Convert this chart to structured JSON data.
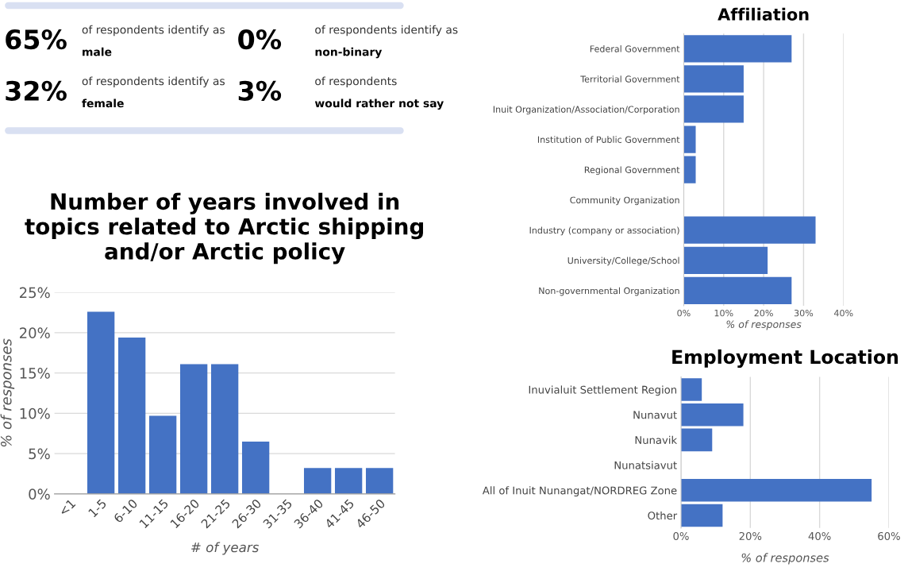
{
  "chart_data": [
    {
      "type": "other",
      "annotations": [
        "65%",
        "of respondents identify as",
        "male",
        "0%",
        "of respondents identify as",
        "non-binary",
        "32%",
        "of respondents identify as",
        "female",
        "3%",
        "of respondents",
        "would rather not say"
      ]
    },
    {
      "type": "bar",
      "title": "Number of years involved in\ntopics related to Arctic shipping\nand/or Arctic policy",
      "xlabel": "# of years",
      "ylabel": "% of responses",
      "categories": [
        "<1",
        "1-5",
        "6-10",
        "11-15",
        "16-20",
        "21-25",
        "26-30",
        "31-35",
        "36-40",
        "41-45",
        "46-50"
      ],
      "values": [
        0,
        22.6,
        19.4,
        9.7,
        16.1,
        16.1,
        6.5,
        0,
        3.2,
        3.2,
        3.2
      ],
      "color": "#4472c4",
      "ylim": [
        0,
        25
      ],
      "yticks": [
        {
          "value": 0,
          "label": "0%"
        },
        {
          "value": 5,
          "label": "5%"
        },
        {
          "value": 10,
          "label": "10%"
        },
        {
          "value": 15,
          "label": "15%"
        },
        {
          "value": 20,
          "label": "20%"
        },
        {
          "value": 25,
          "label": "25%"
        }
      ],
      "grid": "y"
    },
    {
      "type": "bar",
      "orientation": "horizontal",
      "title": "Affiliation",
      "xlabel": "% of responses",
      "categories": [
        "Federal Government",
        "Territorial Government",
        "Inuit Organization/Association/Corporation",
        "Institution of Public Government",
        "Regional Government",
        "Community Organization",
        "Industry (company or association)",
        "University/College/School",
        "Non-governmental Organization"
      ],
      "values": [
        27,
        15,
        15,
        3,
        3,
        0,
        33,
        21,
        27
      ],
      "color": "#4472c4",
      "xlim": [
        0,
        40
      ],
      "xticks": [
        {
          "value": 0,
          "label": "0%"
        },
        {
          "value": 10,
          "label": "10%"
        },
        {
          "value": 20,
          "label": "20%"
        },
        {
          "value": 30,
          "label": "30%"
        },
        {
          "value": 40,
          "label": "40%"
        }
      ],
      "grid": "x"
    },
    {
      "type": "bar",
      "orientation": "horizontal",
      "title": "Employment Location",
      "xlabel": "% of responses",
      "categories": [
        "Inuvialuit Settlement Region",
        "Nunavut",
        "Nunavik",
        "Nunatsiavut",
        "All of Inuit Nunangat/NORDREG Zone",
        "Other"
      ],
      "values": [
        6,
        18,
        9,
        0,
        55,
        12
      ],
      "color": "#4472c4",
      "xlim": [
        0,
        60
      ],
      "xticks": [
        {
          "value": 0,
          "label": "0%"
        },
        {
          "value": 20,
          "label": "20%"
        },
        {
          "value": 40,
          "label": "40%"
        },
        {
          "value": 60,
          "label": "60%"
        }
      ],
      "grid": "x"
    }
  ]
}
